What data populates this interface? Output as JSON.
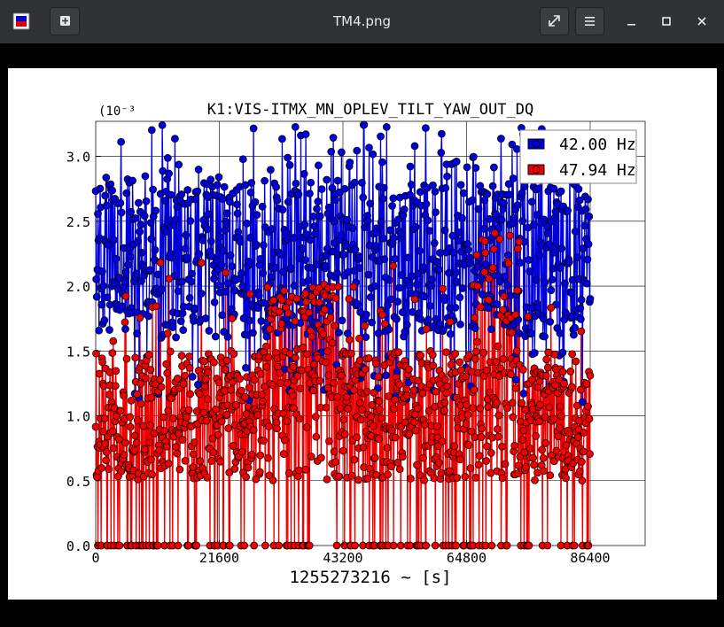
{
  "window": {
    "title": "TM4.png"
  },
  "chart_data": {
    "type": "line",
    "title": "K1:VIS-ITMX_MN_OPLEV_TILT_YAW_OUT_DQ",
    "xlabel": "1255273216 ~ [s]",
    "ylabel": "",
    "y_multiplier": "(10⁻³",
    "xlim": [
      0,
      96000
    ],
    "ylim": [
      0,
      3.27
    ],
    "x_ticks": [
      "0",
      "21600",
      "43200",
      "64800",
      "86400"
    ],
    "y_ticks": [
      "0.0",
      "0.5",
      "1.0",
      "1.5",
      "2.0",
      "2.5",
      "3.0"
    ],
    "grid": true,
    "legend_position": "top-right",
    "series": [
      {
        "name": "42.00 Hz",
        "color": "#0000dd",
        "x_range": [
          0,
          86400
        ],
        "typical_range": [
          1.6,
          2.8
        ],
        "spike_max": 3.25
      },
      {
        "name": "47.94 Hz",
        "color": "#ee0000",
        "x_range": [
          0,
          86400
        ],
        "typical_range": [
          0.5,
          1.5
        ],
        "spike_max": 2.85
      }
    ]
  }
}
